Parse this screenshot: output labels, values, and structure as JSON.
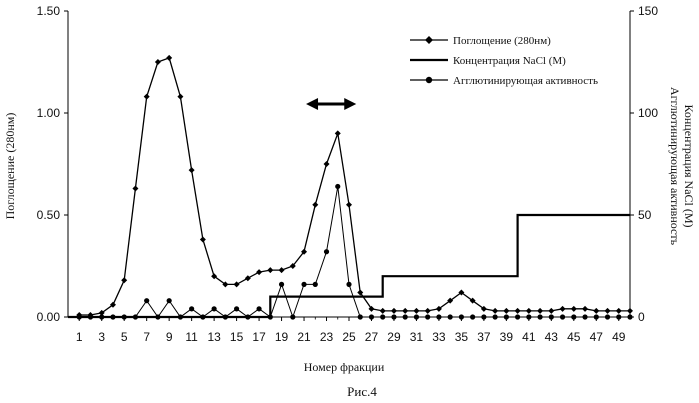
{
  "chart_data": {
    "type": "line",
    "xlabel": "Номер фракции",
    "ylabel_left": "Поглощение (280нм)",
    "ylabel_right": [
      "Агглютинирующая активность",
      "Концентрация NaCl (М)"
    ],
    "caption": "Рис.4",
    "xlim": [
      0,
      50
    ],
    "ylim_left": [
      0,
      1.5
    ],
    "ylim_right": [
      0,
      150
    ],
    "x_ticks": [
      1,
      3,
      5,
      7,
      9,
      11,
      13,
      15,
      17,
      19,
      21,
      23,
      25,
      27,
      29,
      31,
      33,
      35,
      37,
      39,
      41,
      43,
      45,
      47,
      49
    ],
    "y_ticks_left": [
      "0.00",
      "0.50",
      "1.00",
      "1.50"
    ],
    "y_ticks_right": [
      "0",
      "50",
      "100",
      "150"
    ],
    "legend": [
      "Поглощение (280нм)",
      "Концентрация NaCl (М)",
      "Агглютинирующая активность"
    ],
    "legend_position": "top-right",
    "grid": false,
    "pooled_range": [
      21,
      26
    ],
    "series": [
      {
        "name": "Поглощение (280нм)",
        "axis": "left",
        "x": [
          1,
          2,
          3,
          4,
          5,
          6,
          7,
          8,
          9,
          10,
          11,
          12,
          13,
          14,
          15,
          16,
          17,
          18,
          19,
          20,
          21,
          22,
          23,
          24,
          25,
          26,
          27,
          28,
          29,
          30,
          31,
          32,
          33,
          34,
          35,
          36,
          37,
          38,
          39,
          40,
          41,
          42,
          43,
          44,
          45,
          46,
          47,
          48,
          49,
          50
        ],
        "values": [
          0.01,
          0.01,
          0.02,
          0.06,
          0.18,
          0.63,
          1.08,
          1.25,
          1.27,
          1.08,
          0.72,
          0.38,
          0.2,
          0.16,
          0.16,
          0.19,
          0.22,
          0.23,
          0.23,
          0.25,
          0.32,
          0.55,
          0.75,
          0.9,
          0.55,
          0.12,
          0.04,
          0.03,
          0.03,
          0.03,
          0.03,
          0.03,
          0.04,
          0.08,
          0.12,
          0.08,
          0.04,
          0.03,
          0.03,
          0.03,
          0.03,
          0.03,
          0.03,
          0.04,
          0.04,
          0.04,
          0.03,
          0.03,
          0.03,
          0.03
        ]
      },
      {
        "name": "Концентрация NaCl (М)",
        "axis": "right",
        "steps": [
          [
            0,
            0
          ],
          [
            18,
            0
          ],
          [
            18,
            10
          ],
          [
            28,
            10
          ],
          [
            28,
            20
          ],
          [
            40,
            20
          ],
          [
            40,
            50
          ],
          [
            50,
            50
          ]
        ]
      },
      {
        "name": "Агглютинирующая активность",
        "axis": "right",
        "x": [
          1,
          2,
          3,
          4,
          5,
          6,
          7,
          8,
          9,
          10,
          11,
          12,
          13,
          14,
          15,
          16,
          17,
          18,
          19,
          20,
          21,
          22,
          23,
          24,
          25,
          26,
          27,
          28,
          29,
          30,
          31,
          32,
          33,
          34,
          35,
          36,
          37,
          38,
          39,
          40,
          41,
          42,
          43,
          44,
          45,
          46,
          47,
          48,
          49,
          50
        ],
        "values": [
          0,
          0,
          0,
          0,
          0,
          0,
          8,
          0,
          8,
          0,
          4,
          0,
          4,
          0,
          4,
          0,
          4,
          0,
          16,
          0,
          16,
          16,
          32,
          64,
          16,
          0,
          0,
          0,
          0,
          0,
          0,
          0,
          0,
          0,
          0,
          0,
          0,
          0,
          0,
          0,
          0,
          0,
          0,
          0,
          0,
          0,
          0,
          0,
          0,
          0
        ]
      }
    ]
  }
}
